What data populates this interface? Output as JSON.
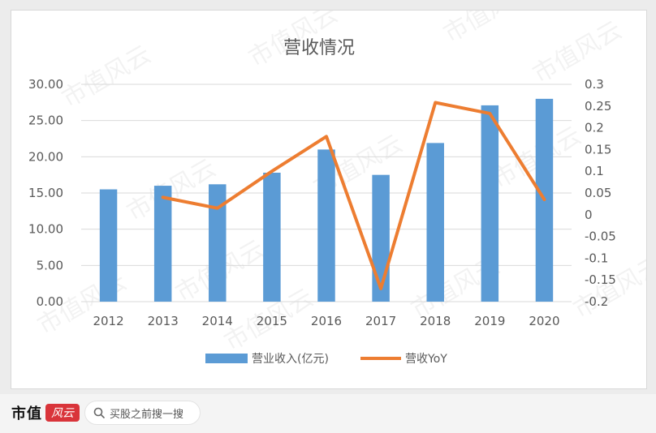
{
  "footer": {
    "brand": "市值",
    "brand_badge": "风云",
    "search_placeholder": "买股之前搜一搜"
  },
  "watermark": "市值风云",
  "colors": {
    "bar": "#5b9bd5",
    "line": "#ed7d31",
    "grid": "#d9d9d9",
    "text": "#595959"
  },
  "chart_data": {
    "type": "bar",
    "title": "营收情况",
    "categories": [
      "2012",
      "2013",
      "2014",
      "2015",
      "2016",
      "2017",
      "2018",
      "2019",
      "2020"
    ],
    "y_left": {
      "ylim": [
        0,
        30
      ],
      "ticks": [
        "0.00",
        "5.00",
        "10.00",
        "15.00",
        "20.00",
        "25.00",
        "30.00"
      ]
    },
    "y_right": {
      "ylim": [
        -0.2,
        0.3
      ],
      "ticks": [
        "-0.2",
        "-0.15",
        "-0.1",
        "-0.05",
        "0",
        "0.05",
        "0.1",
        "0.15",
        "0.2",
        "0.25",
        "0.3"
      ]
    },
    "series": [
      {
        "name": "营业收入(亿元)",
        "type": "bar",
        "axis": "left",
        "values": [
          15.5,
          16.0,
          16.2,
          17.8,
          21.0,
          17.5,
          21.9,
          27.1,
          28.0
        ]
      },
      {
        "name": "营收YoY",
        "type": "line",
        "axis": "right",
        "values": [
          null,
          0.04,
          0.015,
          0.1,
          0.18,
          -0.17,
          0.258,
          0.233,
          0.035
        ]
      }
    ],
    "legend": "bottom",
    "grid": true
  }
}
